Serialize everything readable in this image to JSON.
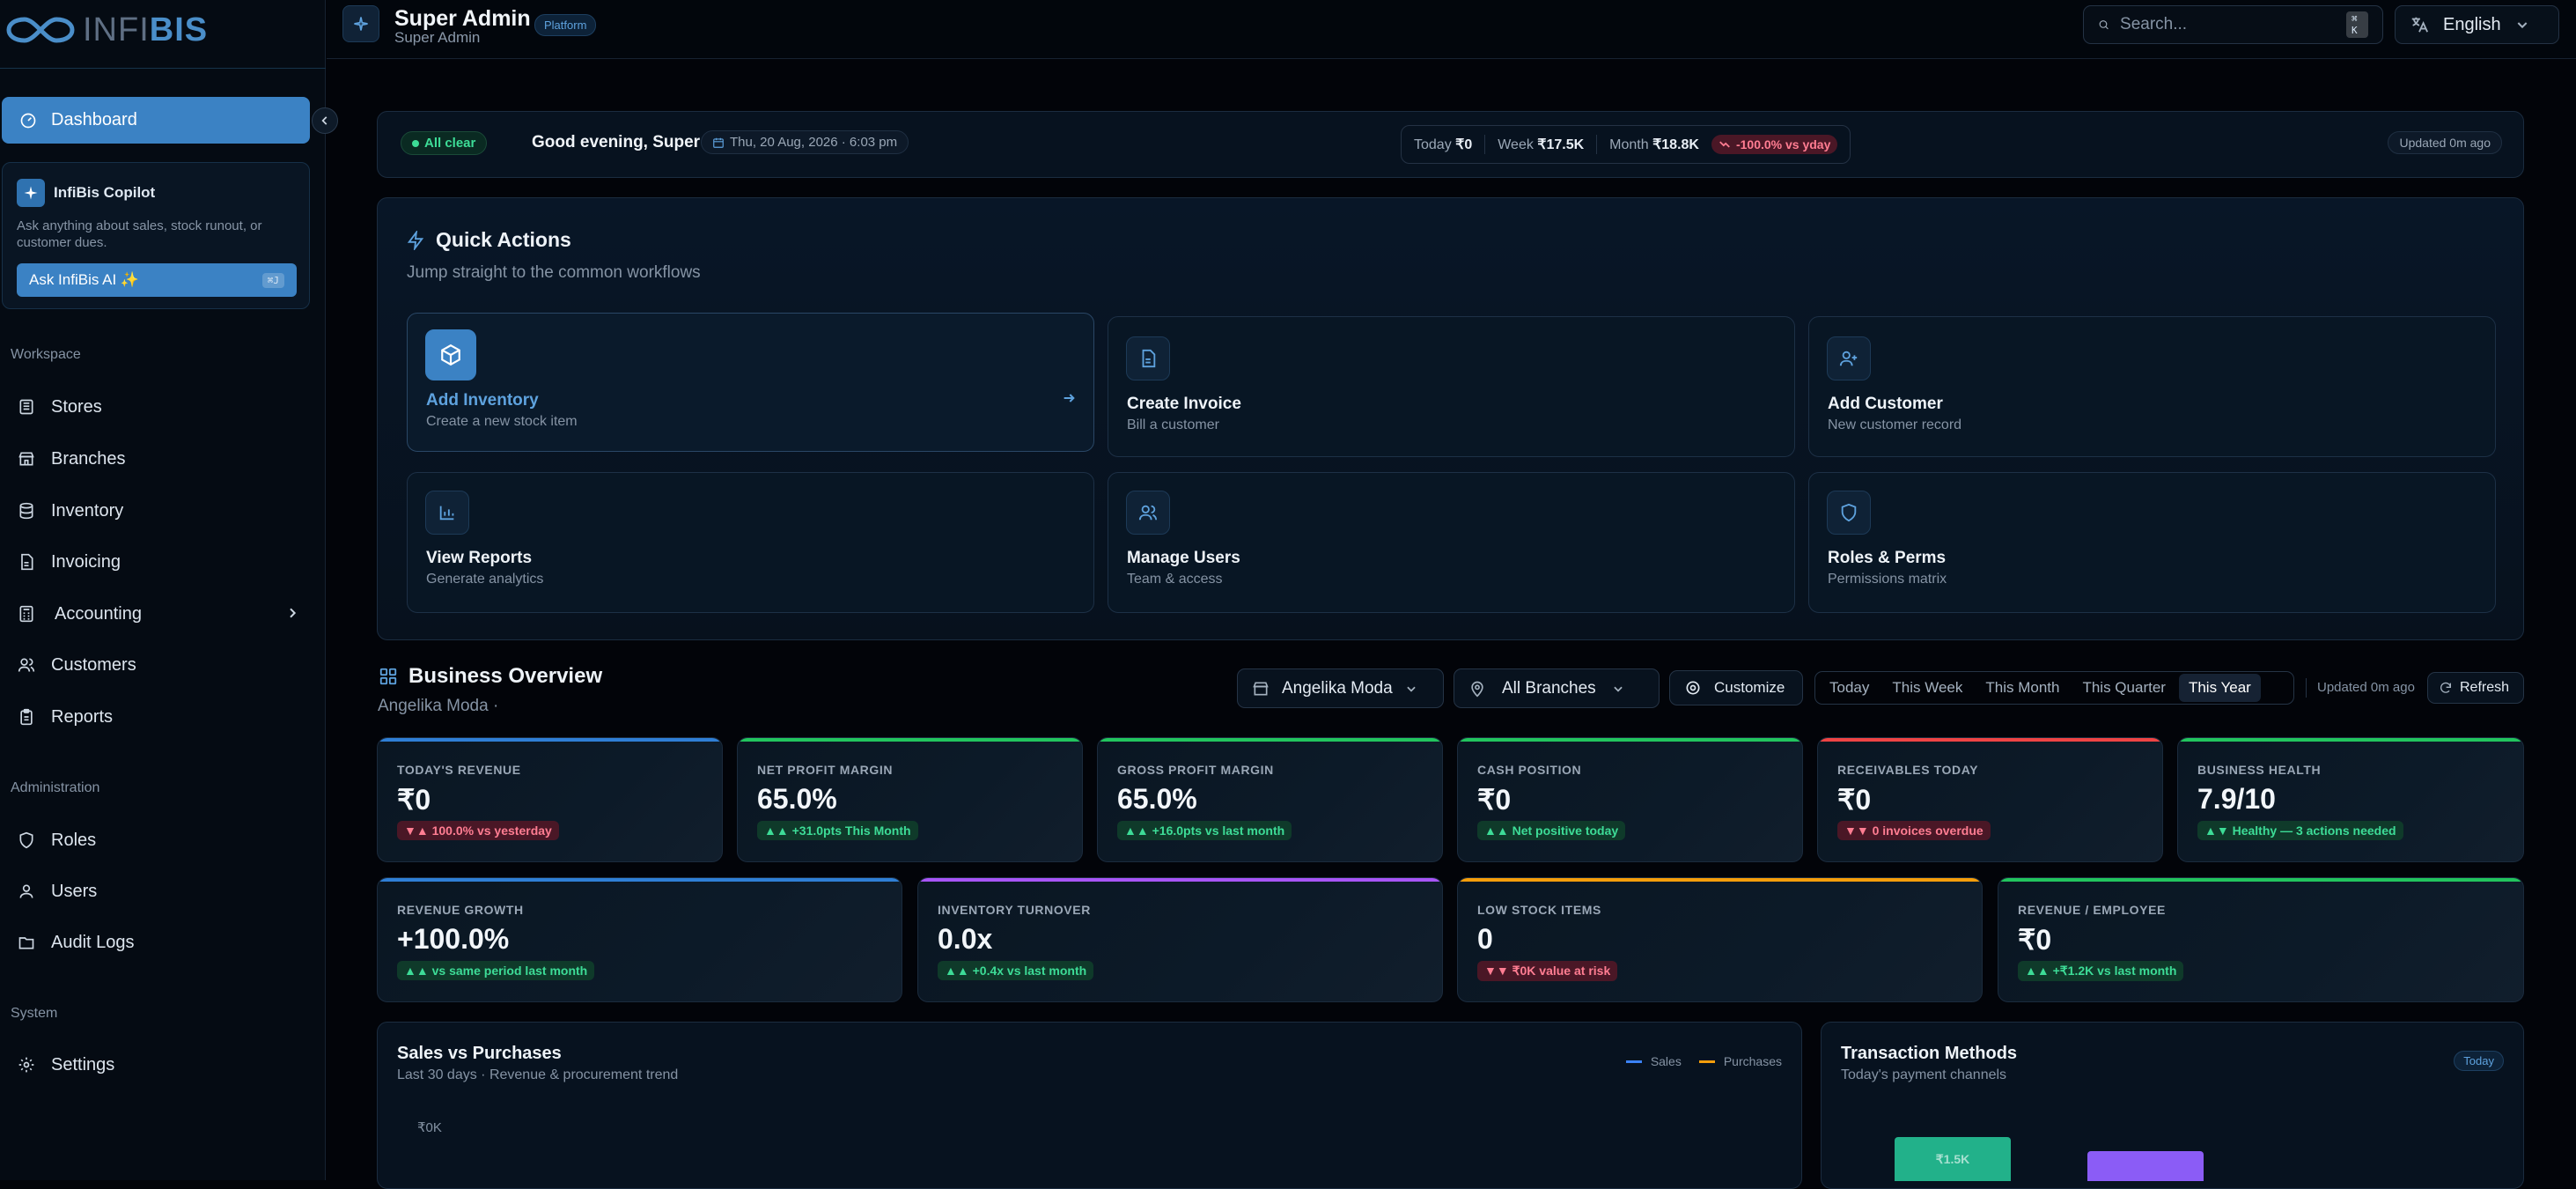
{
  "brand": {
    "logo_a": "INFI",
    "logo_b": "BIS"
  },
  "sidebar": {
    "active": {
      "label": "Dashboard",
      "icon": "dashboard-icon"
    },
    "copilot": {
      "title": "InfiBis Copilot",
      "desc": "Ask anything about sales, stock runout, or customer dues.",
      "button": "Ask InfiBis AI ✨",
      "shortcut": "⌘J"
    },
    "workspace_label": "Workspace",
    "workspace": [
      {
        "label": "Stores",
        "icon": "store-icon"
      },
      {
        "label": "Branches",
        "icon": "branch-icon"
      },
      {
        "label": "Inventory",
        "icon": "database-icon"
      },
      {
        "label": "Invoicing",
        "icon": "file-icon"
      },
      {
        "label": "Accounting",
        "icon": "calculator-icon"
      },
      {
        "label": "Customers",
        "icon": "users-icon"
      },
      {
        "label": "Reports",
        "icon": "clipboard-icon"
      }
    ],
    "admin_label": "Administration",
    "admin": [
      {
        "label": "Roles",
        "icon": "shield-icon"
      },
      {
        "label": "Users",
        "icon": "user-icon"
      },
      {
        "label": "Audit Logs",
        "icon": "folder-icon"
      }
    ],
    "system_label": "System",
    "system": [
      {
        "label": "Settings",
        "icon": "gear-icon"
      }
    ]
  },
  "topbar": {
    "title": "Super Admin",
    "subtitle": "Super Admin",
    "badge": "Platform",
    "search_placeholder": "Search...",
    "search_shortcut": "⌘ K",
    "language": "English"
  },
  "status": {
    "all_clear": "All clear",
    "greeting": "Good evening, Super",
    "date": "Thu, 20 Aug, 2026 · 6:03 pm",
    "today_label": "Today",
    "today_value": "₹0",
    "week_label": "Week",
    "week_value": "₹17.5K",
    "month_label": "Month",
    "month_value": "₹18.8K",
    "delta": "-100.0% vs yday",
    "updated": "Updated 0m ago"
  },
  "quick_actions": {
    "title": "Quick Actions",
    "subtitle": "Jump straight to the common workflows",
    "items": [
      {
        "title": "Add Inventory",
        "sub": "Create a new stock item",
        "icon": "package-icon"
      },
      {
        "title": "Create Invoice",
        "sub": "Bill a customer",
        "icon": "invoice-icon"
      },
      {
        "title": "Add Customer",
        "sub": "New customer record",
        "icon": "user-plus-icon"
      },
      {
        "title": "View Reports",
        "sub": "Generate analytics",
        "icon": "bar-chart-icon"
      },
      {
        "title": "Manage Users",
        "sub": "Team & access",
        "icon": "users-icon"
      },
      {
        "title": "Roles & Perms",
        "sub": "Permissions matrix",
        "icon": "shield-icon"
      }
    ]
  },
  "overview": {
    "title": "Business Overview",
    "subtitle": "Angelika Moda ·",
    "store_select": "Angelika Moda",
    "branch_select": "All Branches",
    "customize": "Customize",
    "tabs": [
      "Today",
      "This Week",
      "This Month",
      "This Quarter",
      "This Year"
    ],
    "active_tab": "This Year",
    "updated": "Updated 0m ago",
    "refresh": "Refresh"
  },
  "kpis": [
    {
      "label": "TODAY'S REVENUE",
      "value": "₹0",
      "badge": "▼▲ 100.0% vs yesterday",
      "tone": "bad",
      "color": "#2f7fd6"
    },
    {
      "label": "NET PROFIT MARGIN",
      "value": "65.0%",
      "badge": "▲▲ +31.0pts This Month",
      "tone": "good",
      "color": "#22c55e"
    },
    {
      "label": "GROSS PROFIT MARGIN",
      "value": "65.0%",
      "badge": "▲▲ +16.0pts vs last month",
      "tone": "good",
      "color": "#22c55e"
    },
    {
      "label": "CASH POSITION",
      "value": "₹0",
      "badge": "▲▲ Net positive today",
      "tone": "good",
      "color": "#22c55e"
    },
    {
      "label": "RECEIVABLES TODAY",
      "value": "₹0",
      "badge": "▼▼ 0 invoices overdue",
      "tone": "bad",
      "color": "#ef4444"
    },
    {
      "label": "BUSINESS HEALTH",
      "value": "7.9/10",
      "badge": "▲▼ Healthy — 3 actions needed",
      "tone": "good",
      "color": "#22c55e"
    },
    {
      "label": "REVENUE GROWTH",
      "value": "+100.0%",
      "badge": "▲▲ vs same period last month",
      "tone": "good",
      "color": "#2f7fd6"
    },
    {
      "label": "INVENTORY TURNOVER",
      "value": "0.0x",
      "badge": "▲▲ +0.4x vs last month",
      "tone": "good",
      "color": "#a855f7"
    },
    {
      "label": "LOW STOCK ITEMS",
      "value": "0",
      "badge": "▼▼ ₹0K value at risk",
      "tone": "bad",
      "color": "#f59e0b"
    },
    {
      "label": "REVENUE / EMPLOYEE",
      "value": "₹0",
      "badge": "▲▲ +₹1.2K vs last month",
      "tone": "good",
      "color": "#22c55e"
    }
  ],
  "sales_chart": {
    "title": "Sales vs Purchases",
    "subtitle": "Last 30 days · Revenue & procurement trend",
    "legend": [
      "Sales",
      "Purchases"
    ],
    "colors": [
      "#3b82f6",
      "#f59e0b"
    ],
    "y_tick": "₹0K"
  },
  "tx_chart": {
    "title": "Transaction Methods",
    "subtitle": "Today's payment channels",
    "badge": "Today",
    "bar_label": "₹1.5K"
  },
  "chart_data": {
    "type": "bar",
    "categories": [
      "",
      ""
    ],
    "values": [
      1.5,
      null
    ],
    "ylabel": "",
    "xlabel": "",
    "title": "Transaction Methods"
  }
}
